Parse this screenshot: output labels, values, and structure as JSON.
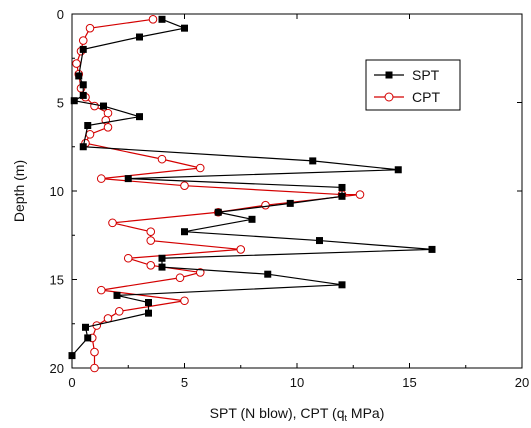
{
  "chart_data": {
    "type": "line",
    "xlabel_parts": {
      "before": "SPT (N blow), CPT (q",
      "sub": "t",
      "after": " MPa)"
    },
    "ylabel": "Depth (m)",
    "xlim": [
      0,
      20
    ],
    "ylim": [
      0,
      20
    ],
    "y_inverted": true,
    "x_axis_position": "top-and-bottom-frame, labels at bottom",
    "x_ticks": [
      0,
      5,
      10,
      15,
      20
    ],
    "y_ticks": [
      0,
      5,
      10,
      15,
      20
    ],
    "legend_position": "top-right",
    "grid": false,
    "series": [
      {
        "name": "SPT",
        "color": "#000000",
        "marker": "filled-square",
        "points": [
          [
            4,
            0.3
          ],
          [
            5,
            0.8
          ],
          [
            3,
            1.3
          ],
          [
            0.5,
            2.0
          ],
          [
            0.3,
            3.5
          ],
          [
            0.5,
            4.0
          ],
          [
            0.5,
            4.6
          ],
          [
            0.1,
            4.9
          ],
          [
            1.4,
            5.2
          ],
          [
            3,
            5.8
          ],
          [
            0.7,
            6.3
          ],
          [
            0.5,
            7.5
          ],
          [
            10.7,
            8.3
          ],
          [
            14.5,
            8.8
          ],
          [
            2.5,
            9.3
          ],
          [
            12,
            9.8
          ],
          [
            12,
            10.3
          ],
          [
            9.7,
            10.7
          ],
          [
            6.5,
            11.2
          ],
          [
            8,
            11.6
          ],
          [
            5,
            12.3
          ],
          [
            11,
            12.8
          ],
          [
            16,
            13.3
          ],
          [
            4,
            13.8
          ],
          [
            4,
            14.3
          ],
          [
            8.7,
            14.7
          ],
          [
            12,
            15.3
          ],
          [
            2,
            15.9
          ],
          [
            3.4,
            16.3
          ],
          [
            3.4,
            16.9
          ],
          [
            0.6,
            17.7
          ],
          [
            0.7,
            18.3
          ],
          [
            0,
            19.3
          ]
        ]
      },
      {
        "name": "CPT",
        "color": "#d40000",
        "marker": "open-circle",
        "points": [
          [
            3.6,
            0.3
          ],
          [
            0.8,
            0.8
          ],
          [
            0.5,
            1.5
          ],
          [
            0.4,
            2.1
          ],
          [
            0.2,
            2.8
          ],
          [
            0.3,
            3.4
          ],
          [
            0.4,
            4.2
          ],
          [
            0.6,
            4.7
          ],
          [
            1.0,
            5.2
          ],
          [
            1.6,
            5.6
          ],
          [
            1.5,
            6.0
          ],
          [
            1.6,
            6.4
          ],
          [
            0.8,
            6.8
          ],
          [
            0.6,
            7.3
          ],
          [
            4.0,
            8.2
          ],
          [
            5.7,
            8.7
          ],
          [
            1.3,
            9.3
          ],
          [
            5.0,
            9.7
          ],
          [
            12.0,
            10.2
          ],
          [
            12.8,
            10.2
          ],
          [
            8.6,
            10.8
          ],
          [
            6.5,
            11.2
          ],
          [
            1.8,
            11.8
          ],
          [
            3.5,
            12.3
          ],
          [
            3.5,
            12.8
          ],
          [
            7.5,
            13.3
          ],
          [
            2.5,
            13.8
          ],
          [
            3.5,
            14.2
          ],
          [
            5.7,
            14.6
          ],
          [
            4.8,
            14.9
          ],
          [
            1.3,
            15.6
          ],
          [
            5.0,
            16.2
          ],
          [
            2.1,
            16.8
          ],
          [
            1.6,
            17.2
          ],
          [
            1.1,
            17.6
          ],
          [
            0.9,
            18.3
          ],
          [
            1.0,
            19.1
          ],
          [
            1.0,
            20.0
          ]
        ]
      }
    ]
  }
}
